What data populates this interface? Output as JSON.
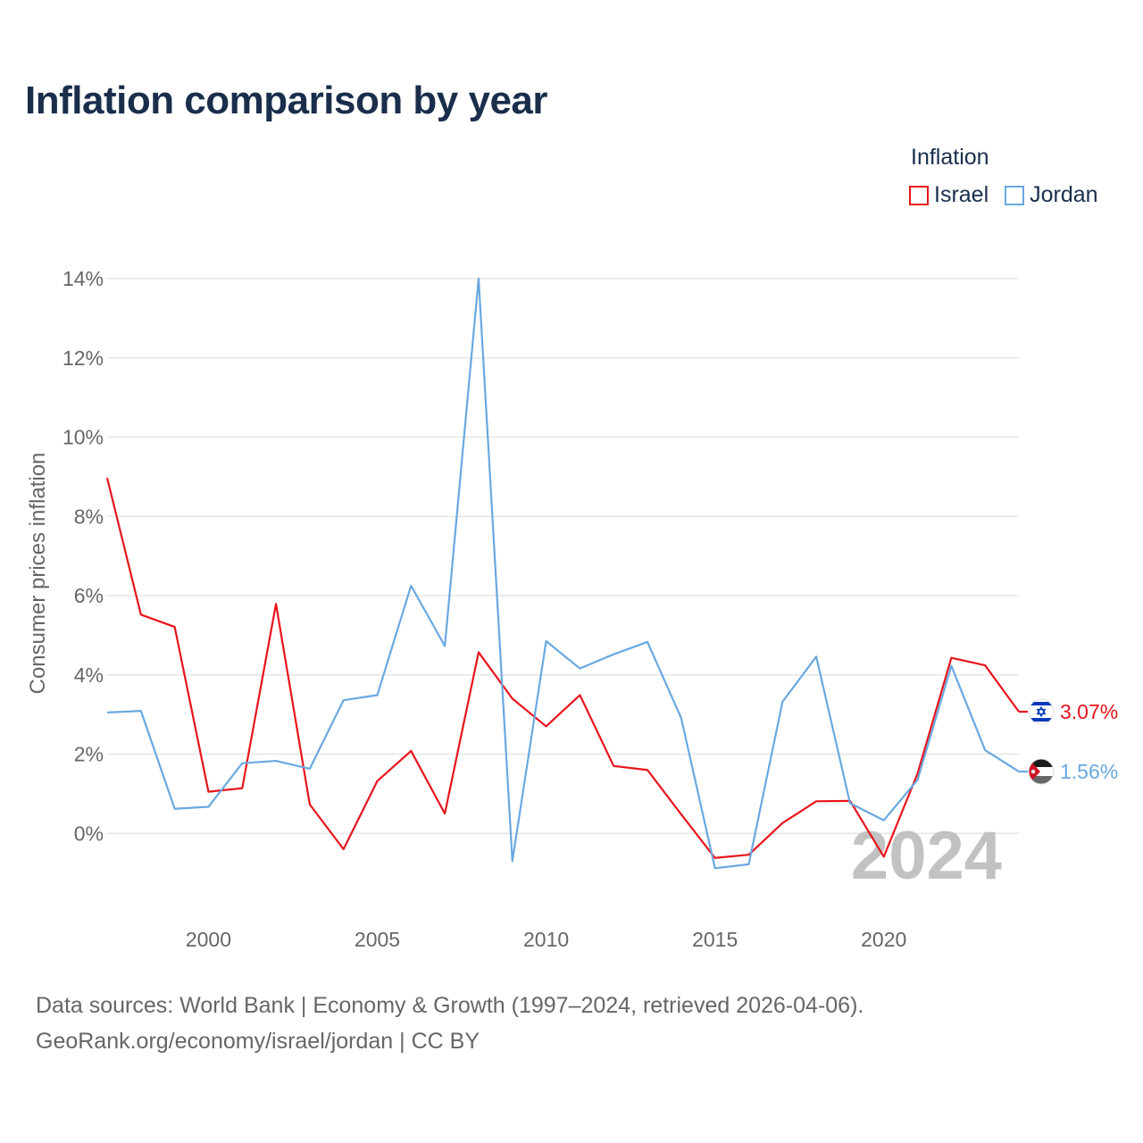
{
  "title": "Inflation comparison by year",
  "legend": {
    "title": "Inflation",
    "items": [
      {
        "label": "Israel",
        "color": "#e8141c"
      },
      {
        "label": "Jordan",
        "color": "#6aa8e0"
      }
    ]
  },
  "footer": {
    "line1": "Data sources: World Bank | Economy & Growth (1997–2024, retrieved 2026-04-06).",
    "line2": "GeoRank.org/economy/israel/jordan | CC BY"
  },
  "chart_data": {
    "type": "line",
    "title": "Inflation comparison by year",
    "ylabel": "Consumer prices inflation",
    "xlabel": "",
    "xlim": [
      1997,
      2024
    ],
    "ylim": [
      -2,
      14
    ],
    "yticks": [
      0,
      2,
      4,
      6,
      8,
      10,
      12,
      14
    ],
    "ytick_labels": [
      "0%",
      "2%",
      "4%",
      "6%",
      "8%",
      "10%",
      "12%",
      "14%"
    ],
    "xticks": [
      2000,
      2005,
      2010,
      2015,
      2020
    ],
    "xtick_labels": [
      "2000",
      "2005",
      "2010",
      "2015",
      "2020"
    ],
    "grid": true,
    "year_watermark": "2024",
    "x": [
      1997,
      1998,
      1999,
      2000,
      2001,
      2002,
      2003,
      2004,
      2005,
      2006,
      2007,
      2008,
      2009,
      2010,
      2011,
      2012,
      2013,
      2014,
      2015,
      2016,
      2017,
      2018,
      2019,
      2020,
      2021,
      2022,
      2023,
      2024
    ],
    "series": [
      {
        "name": "Israel",
        "color": "#e8141c",
        "end_label": "3.07%",
        "flag": "israel-flag",
        "values": [
          8.97,
          5.52,
          5.21,
          1.05,
          1.14,
          5.79,
          0.73,
          -0.4,
          1.32,
          2.08,
          0.5,
          4.57,
          3.4,
          2.7,
          3.49,
          1.7,
          1.6,
          0.48,
          -0.62,
          -0.54,
          0.26,
          0.81,
          0.82,
          -0.59,
          1.51,
          4.43,
          4.24,
          3.07
        ]
      },
      {
        "name": "Jordan",
        "color": "#6aa8e0",
        "end_label": "1.56%",
        "flag": "jordan-flag",
        "values": [
          3.05,
          3.09,
          0.62,
          0.67,
          1.77,
          1.83,
          1.63,
          3.36,
          3.49,
          6.25,
          4.73,
          14.0,
          -0.7,
          4.85,
          4.16,
          4.52,
          4.83,
          2.91,
          -0.88,
          -0.78,
          3.32,
          4.46,
          0.76,
          0.33,
          1.35,
          4.23,
          2.1,
          1.56
        ]
      }
    ]
  }
}
